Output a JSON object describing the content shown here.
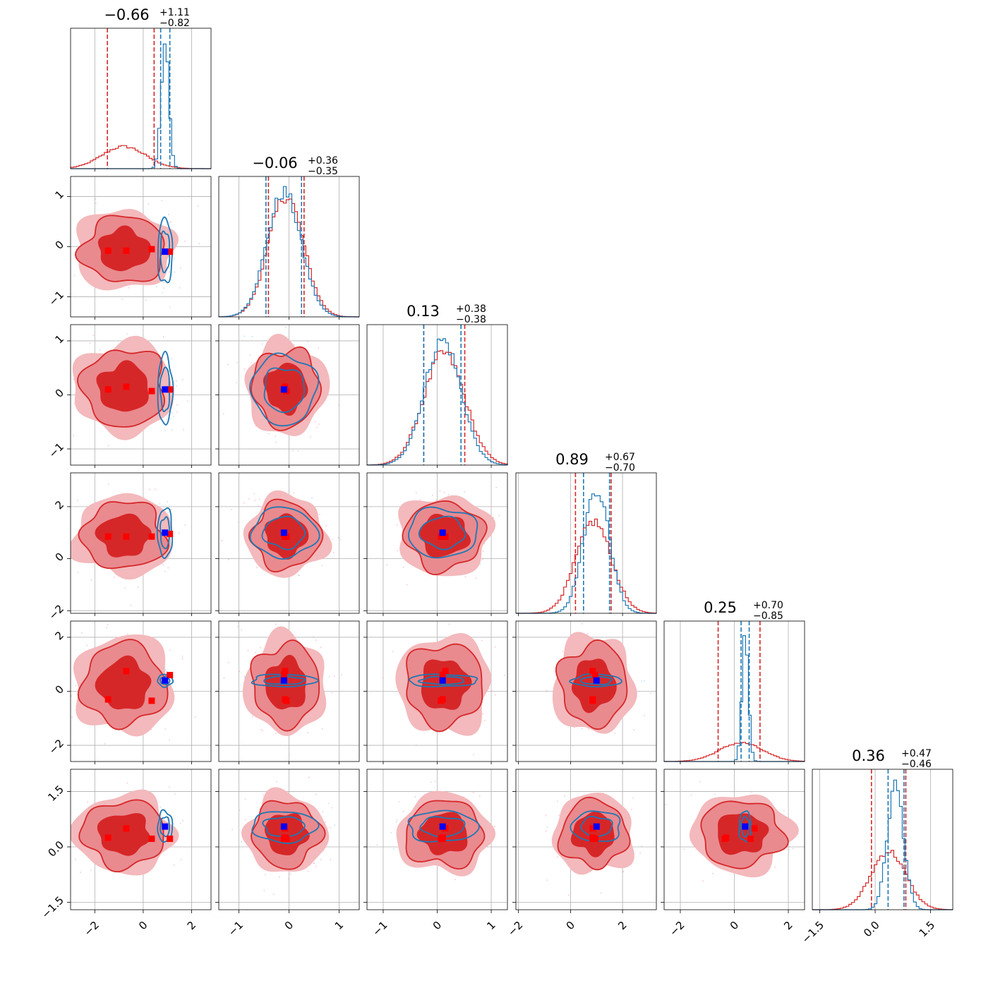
{
  "chart_data": {
    "type": "corner",
    "title": "",
    "colors": {
      "red": "#d62728",
      "blue": "#1f77b4",
      "red_marker": "#ff0000",
      "blue_marker": "#0000ff",
      "grid": "#b0b0b0"
    },
    "grid": true,
    "series": [
      {
        "name": "",
        "color": "#d62728",
        "style": "filled 2D density contours with scatter, step histograms, dashed quantile lines"
      },
      {
        "name": "",
        "color": "#1f77b4",
        "style": "line 2D density contours, step histograms, dashed quantile lines"
      }
    ],
    "parameters": [
      {
        "title_value": "0.66",
        "title_sign": "−",
        "title_plus": "+1.11",
        "title_minus": "−0.82",
        "range": [
          -3.0,
          2.8
        ],
        "ticks": [
          -2,
          0,
          2
        ],
        "tick_labels": [
          "−2",
          "0",
          "2"
        ],
        "red": {
          "mean": -0.8,
          "sd": 0.9,
          "q": [
            -1.48,
            -0.66,
            0.45
          ]
        },
        "blue": {
          "mean": 0.9,
          "sd": 0.16,
          "q": [
            0.72,
            0.9,
            1.1
          ]
        },
        "red_markers": [
          -1.45,
          -0.7,
          0.35,
          1.1
        ],
        "blue_marker": 0.9
      },
      {
        "title_value": "0.06",
        "title_sign": "−",
        "title_plus": "+0.36",
        "title_minus": "−0.35",
        "range": [
          -1.4,
          1.4
        ],
        "ticks": [
          -1,
          0,
          1
        ],
        "tick_labels": [
          "−1",
          "0",
          "1"
        ],
        "red": {
          "mean": -0.06,
          "sd": 0.35,
          "q": [
            -0.41,
            -0.06,
            0.3
          ]
        },
        "blue": {
          "mean": -0.1,
          "sd": 0.34,
          "q": [
            -0.46,
            -0.1,
            0.25
          ]
        },
        "red_markers": [
          -0.08,
          -0.08,
          -0.05,
          -0.1
        ],
        "blue_marker": -0.1
      },
      {
        "title_value": "0.13",
        "title_sign": "",
        "title_plus": "+0.38",
        "title_minus": "−0.38",
        "range": [
          -1.3,
          1.3
        ],
        "ticks": [
          -1,
          0,
          1
        ],
        "tick_labels": [
          "−1",
          "0",
          "1"
        ],
        "red": {
          "mean": 0.13,
          "sd": 0.38,
          "q": [
            -0.25,
            0.13,
            0.51
          ]
        },
        "blue": {
          "mean": 0.1,
          "sd": 0.34,
          "q": [
            -0.25,
            0.1,
            0.44
          ]
        },
        "red_markers": [
          0.1,
          0.15,
          0.07,
          0.1
        ],
        "blue_marker": 0.1
      },
      {
        "title_value": "0.89",
        "title_sign": "",
        "title_plus": "+0.67",
        "title_minus": "−0.70",
        "range": [
          -2.1,
          3.3
        ],
        "ticks": [
          -2,
          0,
          2
        ],
        "tick_labels": [
          "−2",
          "0",
          "2"
        ],
        "red": {
          "mean": 0.89,
          "sd": 0.68,
          "q": [
            0.19,
            0.89,
            1.56
          ]
        },
        "blue": {
          "mean": 1.0,
          "sd": 0.5,
          "q": [
            0.5,
            1.0,
            1.5
          ]
        },
        "red_markers": [
          0.85,
          0.85,
          0.85,
          0.95
        ],
        "blue_marker": 1.0
      },
      {
        "title_value": "0.25",
        "title_sign": "",
        "title_plus": "+0.70",
        "title_minus": "−0.85",
        "range": [
          -2.6,
          2.6
        ],
        "ticks": [
          -2,
          0,
          2
        ],
        "tick_labels": [
          "−2",
          "0",
          "2"
        ],
        "red": {
          "mean": 0.25,
          "sd": 0.8,
          "q": [
            -0.6,
            0.25,
            0.95
          ]
        },
        "blue": {
          "mean": 0.4,
          "sd": 0.12,
          "q": [
            0.25,
            0.4,
            0.55
          ]
        },
        "red_markers": [
          -0.3,
          0.75,
          -0.35,
          0.6
        ],
        "blue_marker": 0.4
      },
      {
        "title_value": "0.36",
        "title_sign": "",
        "title_plus": "+0.47",
        "title_minus": "−0.46",
        "range": [
          -1.7,
          2.1
        ],
        "ticks": [
          -1.5,
          0.0,
          1.5
        ],
        "tick_labels": [
          "−1.5",
          "0.0",
          "1.5"
        ],
        "red": {
          "mean": 0.36,
          "sd": 0.47,
          "q": [
            -0.1,
            0.36,
            0.83
          ]
        },
        "blue": {
          "mean": 0.55,
          "sd": 0.22,
          "q": [
            0.35,
            0.55,
            0.78
          ]
        },
        "red_markers": [
          0.25,
          0.5,
          0.22,
          0.22
        ],
        "blue_marker": 0.55
      }
    ]
  }
}
